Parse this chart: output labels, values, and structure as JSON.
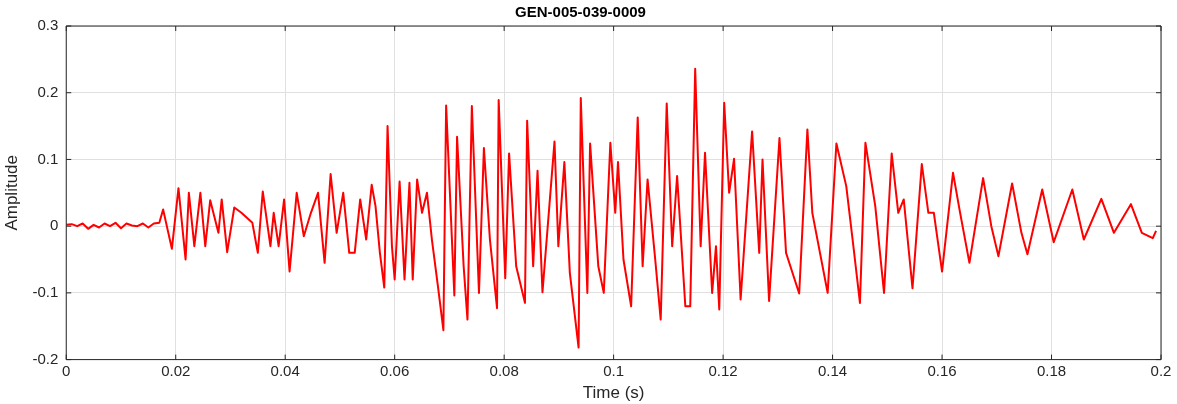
{
  "chart_data": {
    "type": "line",
    "title": "GEN-005-039-0009",
    "xlabel": "Time (s)",
    "ylabel": "Amplitude",
    "xlim": [
      0,
      0.2
    ],
    "xticks": [
      0,
      0.02,
      0.04,
      0.06,
      0.08,
      0.1,
      0.12,
      0.14,
      0.16,
      0.18,
      0.2
    ],
    "ylim": [
      -0.2,
      0.3
    ],
    "yticks": [
      -0.2,
      -0.1,
      0,
      0.1,
      0.2,
      0.3
    ],
    "grid": true,
    "series": [
      {
        "color": "#ff0000",
        "x": [
          0,
          0.001,
          0.002,
          0.003,
          0.004,
          0.005,
          0.006,
          0.007,
          0.008,
          0.009,
          0.01,
          0.011,
          0.012,
          0.013,
          0.014,
          0.015,
          0.016,
          0.017,
          0.0177,
          0.0193,
          0.0205,
          0.0218,
          0.0224,
          0.0234,
          0.0245,
          0.0254,
          0.0263,
          0.0278,
          0.0284,
          0.0294,
          0.0307,
          0.032,
          0.034,
          0.035,
          0.0359,
          0.0373,
          0.0379,
          0.0388,
          0.0398,
          0.0408,
          0.0421,
          0.0434,
          0.0447,
          0.046,
          0.0472,
          0.0483,
          0.0494,
          0.0506,
          0.0517,
          0.0527,
          0.0537,
          0.0548,
          0.0558,
          0.0565,
          0.0573,
          0.0581,
          0.0587,
          0.0595,
          0.06,
          0.0609,
          0.0618,
          0.0627,
          0.0633,
          0.0641,
          0.065,
          0.0659,
          0.0668,
          0.0679,
          0.0689,
          0.0694,
          0.0709,
          0.0714,
          0.0726,
          0.0733,
          0.0741,
          0.0754,
          0.0763,
          0.0774,
          0.0787,
          0.079,
          0.0802,
          0.0809,
          0.0822,
          0.0838,
          0.0842,
          0.0853,
          0.0861,
          0.087,
          0.0892,
          0.0899,
          0.091,
          0.092,
          0.0936,
          0.094,
          0.0952,
          0.0957,
          0.0972,
          0.0982,
          0.0994,
          0.1003,
          0.1008,
          0.1018,
          0.1032,
          0.1044,
          0.1053,
          0.1062,
          0.1076,
          0.1086,
          0.1097,
          0.1107,
          0.1116,
          0.1131,
          0.114,
          0.1149,
          0.1159,
          0.1167,
          0.118,
          0.1187,
          0.1193,
          0.1202,
          0.1211,
          0.122,
          0.1232,
          0.1253,
          0.1266,
          0.1272,
          0.1284,
          0.1303,
          0.1315,
          0.1339,
          0.1354,
          0.1363,
          0.1391,
          0.1407,
          0.1425,
          0.1438,
          0.145,
          0.146,
          0.1478,
          0.1494,
          0.1508,
          0.152,
          0.153,
          0.1546,
          0.1563,
          0.1575,
          0.1585,
          0.16,
          0.162,
          0.1633,
          0.165,
          0.1675,
          0.169,
          0.1703,
          0.1728,
          0.1745,
          0.1756,
          0.1783,
          0.1804,
          0.1838,
          0.1859,
          0.1891,
          0.1914,
          0.1945,
          0.1965,
          0.1985,
          0.1991
        ],
        "values": [
          0.002,
          0.003,
          0.0,
          0.004,
          -0.004,
          0.002,
          -0.002,
          0.004,
          0.0,
          0.005,
          -0.003,
          0.004,
          0.001,
          0.0,
          0.004,
          -0.002,
          0.004,
          0.005,
          0.025,
          -0.034,
          0.057,
          -0.05,
          0.05,
          -0.03,
          0.05,
          -0.03,
          0.039,
          -0.01,
          0.04,
          -0.039,
          0.028,
          0.02,
          0.005,
          -0.04,
          0.052,
          -0.03,
          0.02,
          -0.03,
          0.04,
          -0.068,
          0.05,
          -0.015,
          0.02,
          0.05,
          -0.055,
          0.078,
          -0.01,
          0.05,
          -0.04,
          -0.04,
          0.04,
          -0.02,
          0.062,
          0.03,
          -0.04,
          -0.092,
          0.15,
          -0.03,
          -0.08,
          0.067,
          -0.08,
          0.065,
          -0.08,
          0.07,
          0.02,
          0.05,
          -0.02,
          -0.09,
          -0.156,
          0.181,
          -0.104,
          0.134,
          -0.06,
          -0.14,
          0.18,
          -0.1,
          0.117,
          -0.02,
          -0.123,
          0.189,
          -0.078,
          0.109,
          -0.06,
          -0.115,
          0.158,
          -0.06,
          0.083,
          -0.099,
          0.127,
          -0.03,
          0.096,
          -0.07,
          -0.182,
          0.192,
          -0.1,
          0.124,
          -0.06,
          -0.1,
          0.125,
          0.02,
          0.096,
          -0.05,
          -0.12,
          0.163,
          -0.06,
          0.07,
          -0.05,
          -0.14,
          0.184,
          -0.03,
          0.075,
          -0.12,
          -0.12,
          0.236,
          -0.03,
          0.11,
          -0.1,
          -0.03,
          -0.125,
          0.185,
          0.05,
          0.101,
          -0.11,
          0.142,
          -0.04,
          0.1,
          -0.112,
          0.132,
          -0.04,
          -0.101,
          0.145,
          0.02,
          -0.1,
          0.124,
          0.06,
          -0.03,
          -0.115,
          0.125,
          0.03,
          -0.1,
          0.109,
          0.02,
          0.04,
          -0.093,
          0.093,
          0.02,
          0.02,
          -0.068,
          0.08,
          0.02,
          -0.055,
          0.072,
          0.0,
          -0.045,
          0.064,
          -0.01,
          -0.042,
          0.055,
          -0.024,
          0.055,
          -0.02,
          0.041,
          -0.01,
          0.033,
          -0.01,
          -0.018,
          -0.007
        ]
      }
    ]
  }
}
